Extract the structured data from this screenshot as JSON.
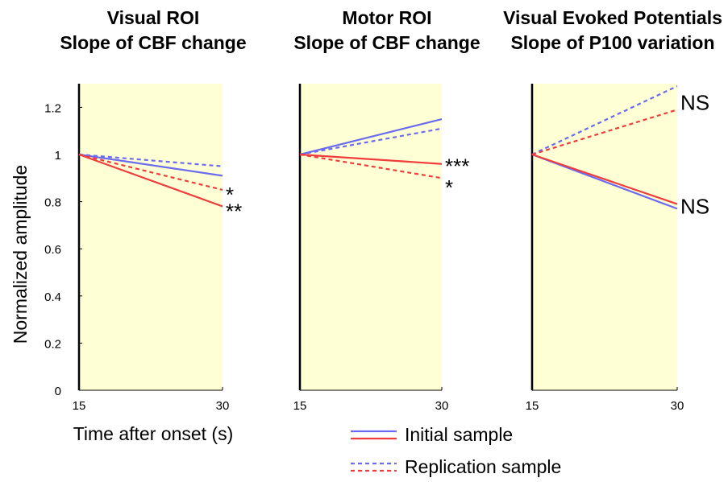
{
  "chart_data": [
    {
      "type": "line",
      "title": [
        "Visual ROI",
        "Slope of CBF change"
      ],
      "ylabel": "Normalized amplitude",
      "xlabel": "Time after onset (s)",
      "x": [
        15,
        30
      ],
      "xticks": [
        "15",
        "30"
      ],
      "ylim": [
        0,
        1.3
      ],
      "yticks": [
        "0",
        "0.2",
        "0.4",
        "0.6",
        "0.8",
        "1",
        "1.2"
      ],
      "series": [
        {
          "name": "Initial sample",
          "group": "blue",
          "style": "solid",
          "values": [
            1.0,
            0.91
          ]
        },
        {
          "name": "Replication sample",
          "group": "blue",
          "style": "dashed",
          "values": [
            1.0,
            0.95
          ]
        },
        {
          "name": "Initial sample",
          "group": "red",
          "style": "solid",
          "values": [
            1.0,
            0.78
          ]
        },
        {
          "name": "Replication sample",
          "group": "red",
          "style": "dashed",
          "values": [
            1.0,
            0.85
          ]
        }
      ],
      "annotations": [
        {
          "text": "*",
          "y": 0.83
        },
        {
          "text": "**",
          "y": 0.76
        }
      ]
    },
    {
      "type": "line",
      "title": [
        "Motor ROI",
        "Slope of CBF change"
      ],
      "x": [
        15,
        30
      ],
      "xticks": [
        "15",
        "30"
      ],
      "ylim": [
        0,
        1.3
      ],
      "series": [
        {
          "name": "Initial sample",
          "group": "blue",
          "style": "solid",
          "values": [
            1.0,
            1.15
          ]
        },
        {
          "name": "Replication sample",
          "group": "blue",
          "style": "dashed",
          "values": [
            1.0,
            1.11
          ]
        },
        {
          "name": "Initial sample",
          "group": "red",
          "style": "solid",
          "values": [
            1.0,
            0.96
          ]
        },
        {
          "name": "Replication sample",
          "group": "red",
          "style": "dashed",
          "values": [
            1.0,
            0.9
          ]
        }
      ],
      "annotations": [
        {
          "text": "***",
          "y": 0.95
        },
        {
          "text": "*",
          "y": 0.86
        }
      ]
    },
    {
      "type": "line",
      "title": [
        "Visual Evoked Potentials",
        "Slope of P100 variation"
      ],
      "x": [
        15,
        30
      ],
      "xticks": [
        "15",
        "30"
      ],
      "ylim": [
        0,
        1.3
      ],
      "series": [
        {
          "name": "Initial sample",
          "group": "blue",
          "style": "solid",
          "values": [
            1.0,
            0.77
          ]
        },
        {
          "name": "Replication sample",
          "group": "blue",
          "style": "dashed",
          "values": [
            1.0,
            1.29
          ]
        },
        {
          "name": "Initial sample",
          "group": "red",
          "style": "solid",
          "values": [
            1.0,
            0.79
          ]
        },
        {
          "name": "Replication sample",
          "group": "red",
          "style": "dashed",
          "values": [
            1.0,
            1.19
          ]
        }
      ],
      "annotations": [
        {
          "text": "NS",
          "y": 1.22
        },
        {
          "text": "NS",
          "y": 0.78
        }
      ]
    }
  ],
  "legend": {
    "items": [
      {
        "label": "Initial sample",
        "style": "solid"
      },
      {
        "label": "Replication sample",
        "style": "dashed"
      }
    ]
  },
  "colors": {
    "blue": "#6b6bf0",
    "red": "#f03c3c",
    "panel_background": "#ffffd6",
    "axis": "#000000"
  }
}
